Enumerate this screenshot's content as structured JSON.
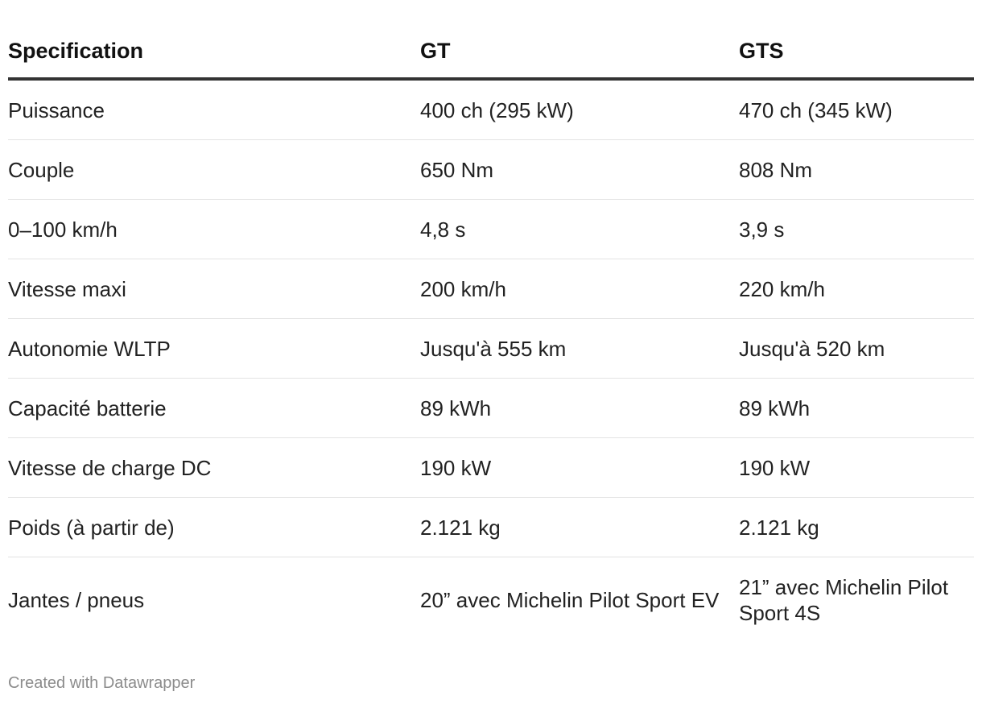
{
  "chart_data": {
    "type": "table",
    "columns": [
      "Specification",
      "GT",
      "GTS"
    ],
    "rows": [
      [
        "Puissance",
        "400 ch (295 kW)",
        "470 ch (345 kW)"
      ],
      [
        "Couple",
        "650 Nm",
        "808 Nm"
      ],
      [
        "0–100 km/h",
        "4,8 s",
        "3,9 s"
      ],
      [
        "Vitesse maxi",
        "200 km/h",
        "220 km/h"
      ],
      [
        "Autonomie WLTP",
        "Jusqu'à 555 km",
        "Jusqu'à 520 km"
      ],
      [
        "Capacité batterie",
        "89 kWh",
        "89 kWh"
      ],
      [
        "Vitesse de charge DC",
        "190 kW",
        "190 kW"
      ],
      [
        "Poids (à partir de)",
        "2.121 kg",
        "2.121 kg"
      ],
      [
        "Jantes / pneus",
        "20” avec Michelin Pilot Sport EV",
        "21” avec Michelin Pilot Sport 4S"
      ]
    ]
  },
  "footer": {
    "credit": "Created with Datawrapper"
  },
  "colors": {
    "header_rule": "#333333",
    "row_rule": "#e3e3e3",
    "footer_text": "#8c8c8c"
  }
}
